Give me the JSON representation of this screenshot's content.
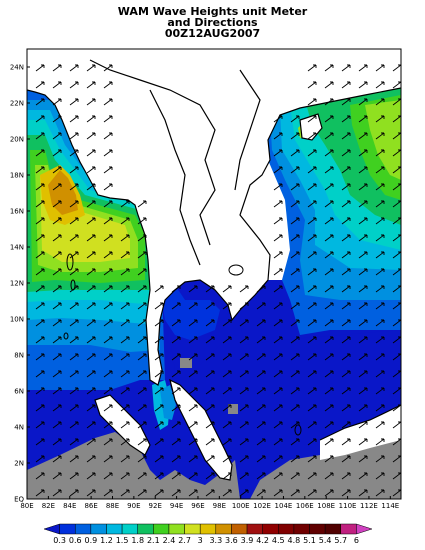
{
  "title": {
    "line1": "WAM Wave Heights unit Meter",
    "line2": "and Directions",
    "line3": "00Z12AUG2007"
  },
  "axes": {
    "lon_labels": [
      "80E",
      "82E",
      "84E",
      "86E",
      "88E",
      "90E",
      "92E",
      "94E",
      "96E",
      "98E",
      "100E",
      "102E",
      "104E",
      "106E",
      "108E",
      "110E",
      "112E",
      "114E"
    ],
    "lat_labels": [
      "EQ",
      "2N",
      "4N",
      "6N",
      "8N",
      "10N",
      "12N",
      "14N",
      "16N",
      "18N",
      "20N",
      "22N",
      "24N"
    ],
    "lon_range": [
      80,
      115
    ],
    "lat_range": [
      0,
      25
    ]
  },
  "colorbar": {
    "labels": [
      "0.3",
      "0.6",
      "0.9",
      "1.2",
      "1.5",
      "1.8",
      "2.1",
      "2.4",
      "2.7",
      "3",
      "3.3",
      "3.6",
      "3.9",
      "4.2",
      "4.5",
      "4.8",
      "5.1",
      "5.4",
      "5.7",
      "6"
    ],
    "colors": [
      "#0a17c8",
      "#0030dc",
      "#0060e0",
      "#0090e0",
      "#00b8e0",
      "#00d0c8",
      "#10c060",
      "#40d020",
      "#90e020",
      "#d0e020",
      "#e0c000",
      "#d09000",
      "#c06000",
      "#a01010",
      "#900000",
      "#800000",
      "#700000",
      "#600000",
      "#500000",
      "#c02080",
      "#d040c0"
    ],
    "nodata_color": "#888888",
    "land_color": "#ffffff"
  },
  "field_colors": {
    "bay_deep": "#0033dd",
    "blue": "#0a17c8",
    "mid_blue": "#0060e0",
    "cyan_blue": "#0090e0",
    "cyan": "#00b8e0",
    "teal": "#00d0c8",
    "green": "#10c060",
    "light_green": "#40d020",
    "yellow_green": "#90e020",
    "yellow": "#d0e020",
    "gold": "#e0c000",
    "orange": "#d09000",
    "gray": "#888888"
  },
  "direction_arrow": "north-east"
}
